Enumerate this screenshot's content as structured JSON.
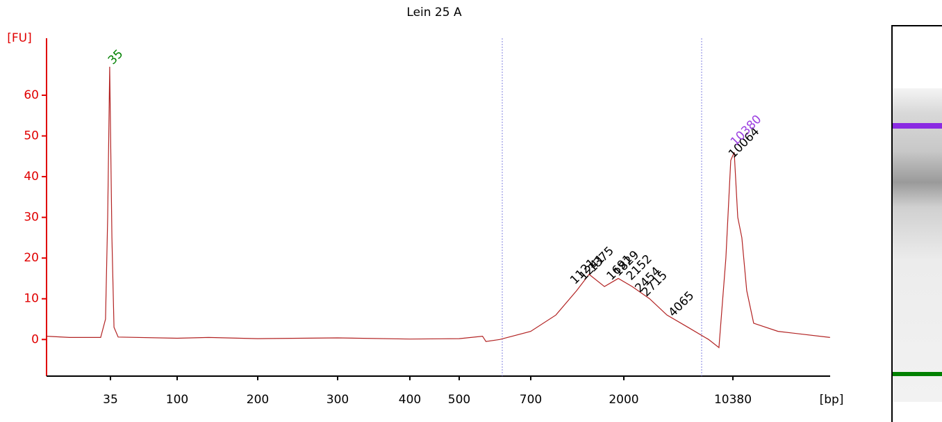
{
  "chart_data": {
    "type": "line",
    "title": "Lein 25 A",
    "y_label": "[FU]",
    "x_label": "[bp]",
    "color": "#b22222",
    "x": [
      12.8,
      18.4,
      30,
      32.4,
      33.5,
      34.6,
      35.8,
      37,
      39.5,
      100,
      131,
      200,
      300,
      400,
      500,
      558,
      567,
      605,
      700,
      929,
      1175,
      1352,
      1607,
      1879,
      2270,
      2951,
      3837,
      5260,
      7190,
      8410,
      9340,
      10050,
      10590,
      11170,
      11890,
      12790,
      14210,
      20500,
      45000
    ],
    "values": [
      0.8,
      0.5,
      0.5,
      5,
      30,
      67,
      25,
      3,
      0.6,
      0.3,
      0.5,
      0.2,
      0.4,
      0.1,
      0.2,
      0.8,
      -0.5,
      0,
      2,
      6,
      12,
      16,
      13,
      15,
      13,
      10,
      6,
      3,
      0,
      -2,
      20,
      44,
      46,
      30,
      25,
      12,
      4,
      2,
      0.5
    ],
    "ylim": [
      -9,
      74
    ],
    "yticks": [
      0,
      10,
      20,
      30,
      40,
      50,
      60
    ],
    "xticks": [
      35,
      100,
      200,
      300,
      400,
      500,
      700,
      2000,
      10380
    ],
    "peak_labels": [
      {
        "label": "35",
        "x": 35,
        "y": 67,
        "color": "#008000"
      },
      {
        "label": "1121",
        "x": 1121,
        "y": 13,
        "color": "#000000"
      },
      {
        "label": "1241",
        "x": 1241,
        "y": 14,
        "color": "#000000"
      },
      {
        "label": "1375",
        "x": 1375,
        "y": 16,
        "color": "#000000"
      },
      {
        "label": "1691",
        "x": 1691,
        "y": 14,
        "color": "#000000"
      },
      {
        "label": "1829",
        "x": 1829,
        "y": 15,
        "color": "#000000"
      },
      {
        "label": "2152",
        "x": 2152,
        "y": 14,
        "color": "#000000"
      },
      {
        "label": "2454",
        "x": 2454,
        "y": 11,
        "color": "#000000"
      },
      {
        "label": "2715",
        "x": 2715,
        "y": 10,
        "color": "#000000"
      },
      {
        "label": "4065",
        "x": 4065,
        "y": 5,
        "color": "#000000"
      },
      {
        "label": "10064",
        "x": 10064,
        "y": 44,
        "color": "#000000"
      },
      {
        "label": "10380",
        "x": 10380,
        "y": 47,
        "color": "#9b3fe0"
      }
    ]
  }
}
